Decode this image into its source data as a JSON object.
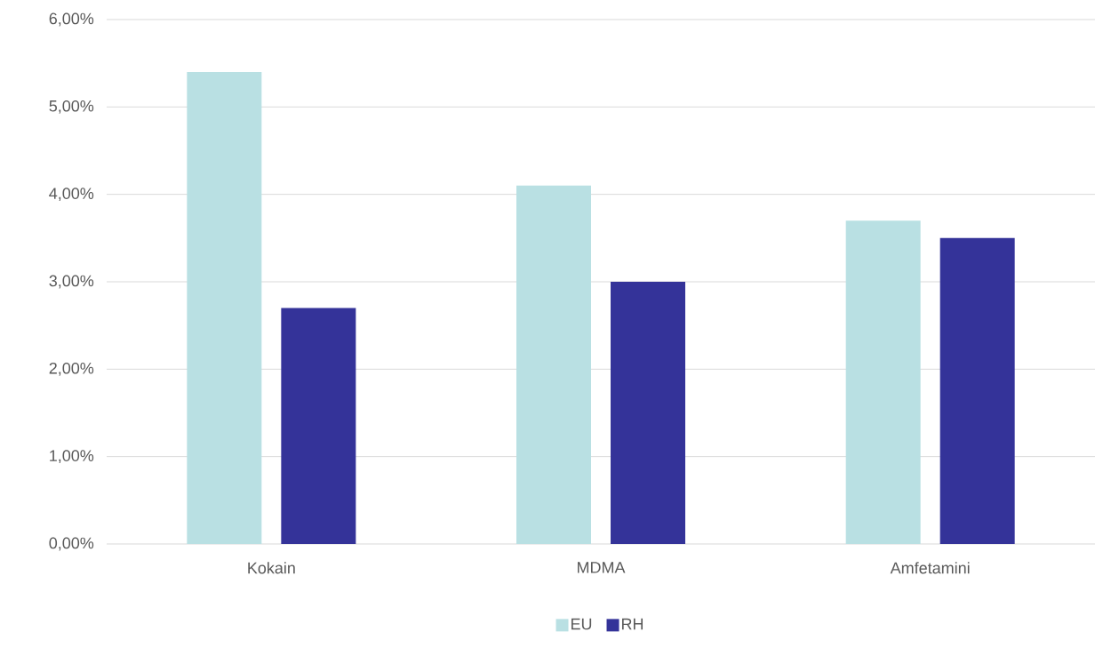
{
  "chart_data": {
    "type": "bar",
    "categories": [
      "Kokain",
      "MDMA",
      "Amfetamini"
    ],
    "series": [
      {
        "name": "EU",
        "color": "#b9e0e3",
        "values": [
          5.4,
          4.1,
          3.7
        ]
      },
      {
        "name": "RH",
        "color": "#343399",
        "values": [
          2.7,
          3.0,
          3.5
        ]
      }
    ],
    "ylim": [
      0,
      6
    ],
    "yticks": [
      {
        "value": 0,
        "label": "0,00%"
      },
      {
        "value": 1,
        "label": "1,00%"
      },
      {
        "value": 2,
        "label": "2,00%"
      },
      {
        "value": 3,
        "label": "3,00%"
      },
      {
        "value": 4,
        "label": "4,00%"
      },
      {
        "value": 5,
        "label": "5,00%"
      },
      {
        "value": 6,
        "label": "6,00%"
      }
    ],
    "grid": "y",
    "legend": "bottom"
  }
}
